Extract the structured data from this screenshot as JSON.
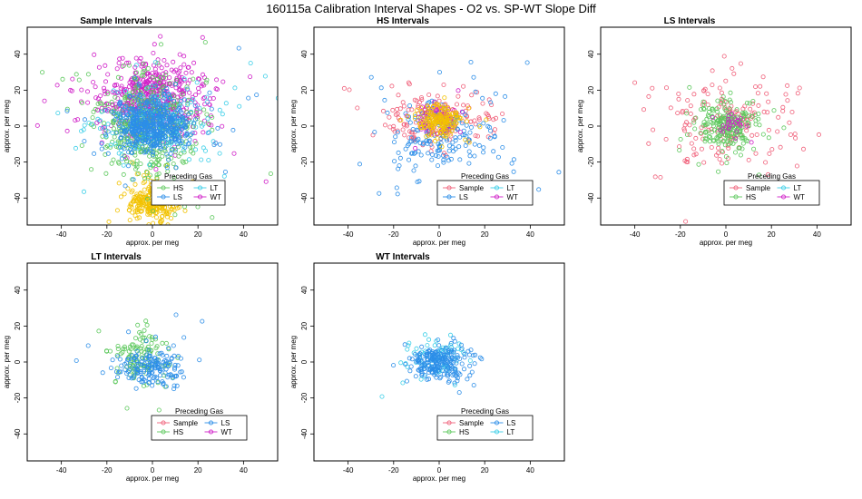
{
  "figure": {
    "title": "160115a   Calibration Interval Shapes - O2 vs. SP-WT Slope Diff"
  },
  "colors": {
    "Sample": "#f0607a",
    "HS": "#5cc85c",
    "LS": "#2c8ee8",
    "LT": "#3ccfe8",
    "WT": "#d020c8",
    "Yellow": "#f2c200"
  },
  "chart_data": [
    {
      "type": "scatter",
      "title": "Sample Intervals",
      "xlabel": "approx. per meg",
      "ylabel": "approx. per meg",
      "xlim": [
        -55,
        55
      ],
      "ylim": [
        -55,
        55
      ],
      "xticks": [
        -40,
        -20,
        0,
        20,
        40
      ],
      "yticks": [
        -40,
        -20,
        0,
        20,
        40
      ],
      "legend_title": "Preceding Gas",
      "legend": [
        "HS",
        "LT",
        "LS",
        "WT"
      ],
      "legend_colors": [
        "HS",
        "LT",
        "LS",
        "WT"
      ],
      "clusters": [
        {
          "color": "Yellow",
          "n": 260,
          "cx": 0,
          "cy": -42,
          "sx": 5,
          "sy": 5
        },
        {
          "color": "WT",
          "n": 560,
          "cx": 0,
          "cy": 16,
          "sx": 12,
          "sy": 11
        },
        {
          "color": "HS",
          "n": 460,
          "cx": -2,
          "cy": 0,
          "sx": 11,
          "sy": 14
        },
        {
          "color": "LT",
          "n": 160,
          "cx": 2,
          "cy": 2,
          "sx": 14,
          "sy": 11
        },
        {
          "color": "LS",
          "n": 520,
          "cx": 0,
          "cy": 0,
          "sx": 8,
          "sy": 7
        }
      ]
    },
    {
      "type": "scatter",
      "title": "HS Intervals",
      "xlabel": "approx. per meg",
      "ylabel": "approx. per meg",
      "xlim": [
        -55,
        55
      ],
      "ylim": [
        -55,
        55
      ],
      "xticks": [
        -40,
        -20,
        0,
        20,
        40
      ],
      "yticks": [
        -40,
        -20,
        0,
        20,
        40
      ],
      "legend_title": "Preceding Gas",
      "legend": [
        "Sample",
        "LT",
        "LS",
        "WT"
      ],
      "legend_colors": [
        "Sample",
        "LT",
        "LS",
        "WT"
      ],
      "clusters": [
        {
          "color": "Sample",
          "n": 170,
          "cx": 0,
          "cy": 4,
          "sx": 12,
          "sy": 8
        },
        {
          "color": "LS",
          "n": 190,
          "cx": 2,
          "cy": -6,
          "sx": 12,
          "sy": 11
        },
        {
          "color": "WT",
          "n": 80,
          "cx": 0,
          "cy": 3,
          "sx": 5,
          "sy": 4
        },
        {
          "color": "Yellow",
          "n": 170,
          "cx": 0,
          "cy": 3,
          "sx": 5,
          "sy": 4
        }
      ]
    },
    {
      "type": "scatter",
      "title": "LS Intervals",
      "xlabel": "approx. per meg",
      "ylabel": "approx. per meg",
      "xlim": [
        -55,
        55
      ],
      "ylim": [
        -55,
        55
      ],
      "xticks": [
        -40,
        -20,
        0,
        20,
        40
      ],
      "yticks": [
        -40,
        -20,
        0,
        20,
        40
      ],
      "legend_title": "Preceding Gas",
      "legend": [
        "Sample",
        "LT",
        "HS",
        "WT"
      ],
      "legend_colors": [
        "Sample",
        "LT",
        "HS",
        "WT"
      ],
      "clusters": [
        {
          "color": "Sample",
          "n": 170,
          "cx": 0,
          "cy": 0,
          "sx": 16,
          "sy": 13
        },
        {
          "color": "HS",
          "n": 220,
          "cx": 0,
          "cy": 0,
          "sx": 7,
          "sy": 7
        },
        {
          "color": "WT",
          "n": 25,
          "cx": 1,
          "cy": 1,
          "sx": 4,
          "sy": 4
        }
      ]
    },
    {
      "type": "scatter",
      "title": "LT Intervals",
      "xlabel": "approx. per meg",
      "ylabel": "approx. per meg",
      "xlim": [
        -55,
        55
      ],
      "ylim": [
        -55,
        55
      ],
      "xticks": [
        -40,
        -20,
        0,
        20,
        40
      ],
      "yticks": [
        -40,
        -20,
        0,
        20,
        40
      ],
      "legend_title": "Preceding Gas",
      "legend": [
        "Sample",
        "LS",
        "HS",
        "WT"
      ],
      "legend_colors": [
        "Sample",
        "LS",
        "HS",
        "WT"
      ],
      "clusters": [
        {
          "color": "HS",
          "n": 120,
          "cx": -4,
          "cy": 2,
          "sx": 6,
          "sy": 7
        },
        {
          "color": "LS",
          "n": 170,
          "cx": -1,
          "cy": -3,
          "sx": 7,
          "sy": 6
        }
      ]
    },
    {
      "type": "scatter",
      "title": "WT Intervals",
      "xlabel": "approx. per meg",
      "ylabel": "approx. per meg",
      "xlim": [
        -55,
        55
      ],
      "ylim": [
        -55,
        55
      ],
      "xticks": [
        -40,
        -20,
        0,
        20,
        40
      ],
      "yticks": [
        -40,
        -20,
        0,
        20,
        40
      ],
      "legend_title": "Preceding Gas",
      "legend": [
        "Sample",
        "LS",
        "HS",
        "LT"
      ],
      "legend_colors": [
        "Sample",
        "LS",
        "HS",
        "LT"
      ],
      "clusters": [
        {
          "color": "LT",
          "n": 70,
          "cx": -2,
          "cy": 2,
          "sx": 7,
          "sy": 6
        },
        {
          "color": "LS",
          "n": 230,
          "cx": 1,
          "cy": 0,
          "sx": 6,
          "sy": 5
        }
      ]
    }
  ]
}
